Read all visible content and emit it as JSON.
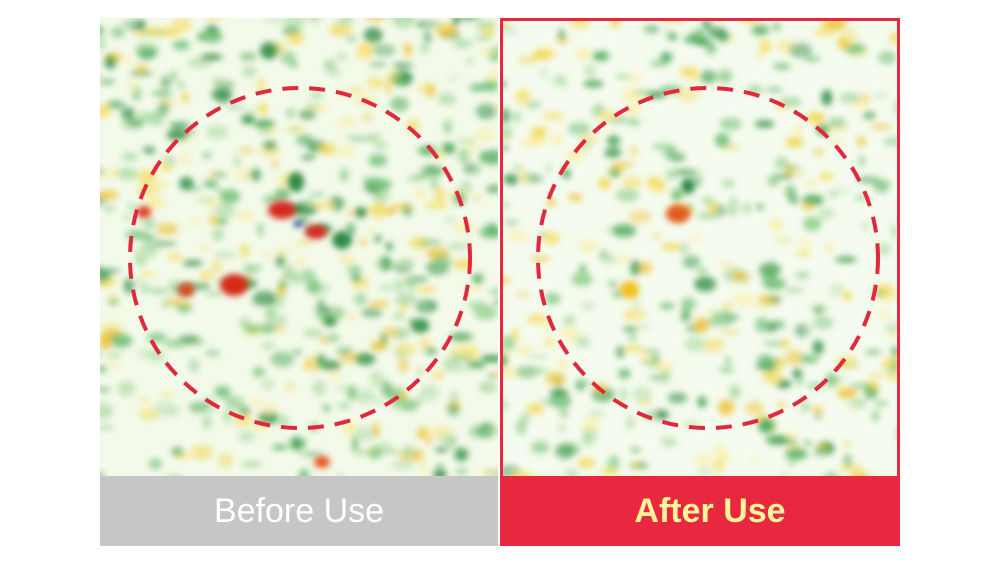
{
  "panels": [
    {
      "label": "Before Use"
    },
    {
      "label": "After Use"
    }
  ]
}
